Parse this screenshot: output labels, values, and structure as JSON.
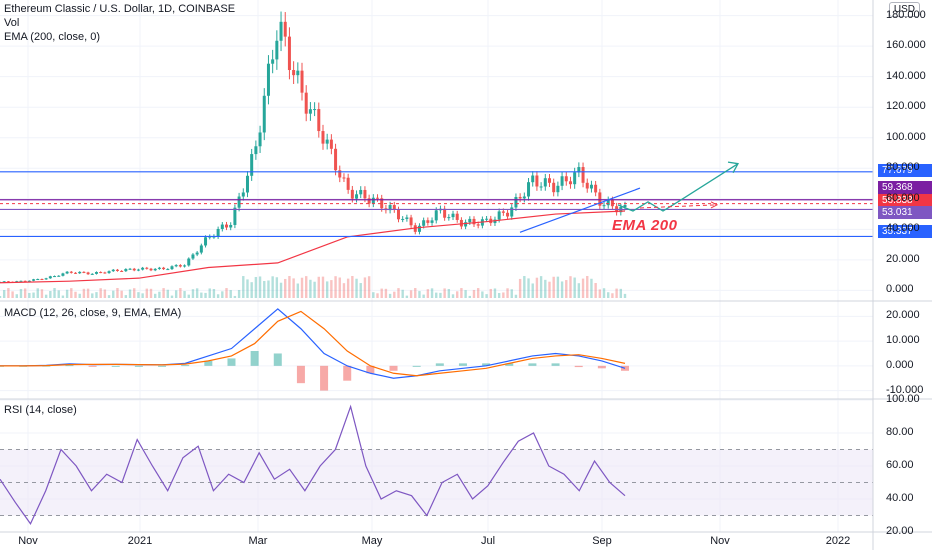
{
  "header": {
    "symbol_line": "Ethereum Classic / U.S. Dollar, 1D, COINBASE",
    "vol_label": "Vol",
    "ema_label": "EMA (200, close, 0)",
    "macd_label": "MACD (12, 26, close, 9, EMA, EMA)",
    "rsi_label": "RSI (14, close)",
    "currency": "USD",
    "annotation": "EMA 200"
  },
  "price_badges": [
    {
      "text": "77.679",
      "color": "#2962ff"
    },
    {
      "text": "59.368",
      "color": "#7b1fa2"
    },
    {
      "text": "56.838",
      "color": "#f23645"
    },
    {
      "text": "53.031",
      "color": "#7e57c2"
    },
    {
      "text": "35.337",
      "color": "#2962ff"
    }
  ],
  "colors": {
    "up": "#26a69a",
    "down": "#ef5350",
    "ema": "#f23645",
    "macd": "#2962ff",
    "signal": "#ff6d00",
    "rsi": "#7e57c2",
    "band": "#ede7f6"
  },
  "chart_data": [
    {
      "type": "candlestick",
      "title": "Ethereum Classic / U.S. Dollar, 1D, COINBASE",
      "x_ticks": [
        "Nov",
        "2021",
        "Mar",
        "May",
        "Jul",
        "Sep",
        "Nov",
        "2022"
      ],
      "y_ticks": [
        "0.000",
        "20.000",
        "40.000",
        "60.000",
        "80.000",
        "100.000",
        "120.000",
        "140.000",
        "160.000",
        "180.000"
      ],
      "ylim": [
        -5,
        185
      ],
      "price_path": [
        {
          "x": "Nov",
          "y": 5.5
        },
        {
          "x": "Dec",
          "y": 6
        },
        {
          "x": "2021",
          "y": 8
        },
        {
          "x": "Jan mid",
          "y": 12
        },
        {
          "x": "Feb",
          "y": 11
        },
        {
          "x": "Feb end",
          "y": 13
        },
        {
          "x": "Mar",
          "y": 14
        },
        {
          "x": "Mar mid",
          "y": 14
        },
        {
          "x": "Apr",
          "y": 17
        },
        {
          "x": "Apr mid",
          "y": 35
        },
        {
          "x": "Apr end",
          "y": 45
        },
        {
          "x": "May",
          "y": 90
        },
        {
          "x": "May 6",
          "y": 175
        },
        {
          "x": "May 8",
          "y": 130
        },
        {
          "x": "May mid",
          "y": 100
        },
        {
          "x": "May end",
          "y": 65
        },
        {
          "x": "Jun",
          "y": 60
        },
        {
          "x": "Jun mid",
          "y": 52
        },
        {
          "x": "Jun end",
          "y": 40
        },
        {
          "x": "Jul",
          "y": 52
        },
        {
          "x": "Jul mid",
          "y": 44
        },
        {
          "x": "Jul end",
          "y": 45
        },
        {
          "x": "Aug",
          "y": 52
        },
        {
          "x": "Aug mid",
          "y": 72
        },
        {
          "x": "Aug end",
          "y": 68
        },
        {
          "x": "Sep",
          "y": 77
        },
        {
          "x": "Sep 7",
          "y": 57
        },
        {
          "x": "Sep mid",
          "y": 53
        }
      ],
      "ema_200_path": [
        {
          "x": "Nov",
          "y": 5
        },
        {
          "x": "2021",
          "y": 6
        },
        {
          "x": "Mar",
          "y": 8
        },
        {
          "x": "Apr mid",
          "y": 15
        },
        {
          "x": "May",
          "y": 18
        },
        {
          "x": "Jun",
          "y": 35
        },
        {
          "x": "Jul",
          "y": 41
        },
        {
          "x": "Aug",
          "y": 45
        },
        {
          "x": "Sep",
          "y": 50
        },
        {
          "x": "Sep mid",
          "y": 52
        }
      ],
      "horizontal_levels": [
        77.679,
        59.368,
        56.838,
        53.031,
        35.337
      ]
    },
    {
      "type": "line",
      "title": "MACD (12, 26, close, 9, EMA, EMA)",
      "y_ticks": [
        "20.000",
        "10.000",
        "0.000",
        "-10.000"
      ],
      "ylim": [
        -13,
        25
      ],
      "series": [
        {
          "name": "MACD",
          "values": [
            0,
            0,
            0.2,
            0.8,
            0.5,
            0.6,
            0.5,
            0.4,
            1,
            4,
            7,
            15,
            23,
            15,
            5,
            0,
            -3,
            -5,
            -4,
            -2,
            -1,
            0,
            2,
            4,
            5,
            4,
            2,
            -1
          ]
        },
        {
          "name": "Signal",
          "values": [
            0,
            0,
            0.1,
            0.5,
            0.6,
            0.6,
            0.5,
            0.4,
            0.7,
            2,
            4,
            9,
            18,
            22,
            15,
            6,
            0,
            -3,
            -4,
            -3,
            -2,
            -1,
            1,
            3,
            4,
            4.5,
            3,
            1
          ]
        }
      ]
    },
    {
      "type": "line",
      "title": "RSI (14, close)",
      "y_ticks": [
        "100.00",
        "80.00",
        "60.00",
        "40.00",
        "20.00"
      ],
      "ylim": [
        20,
        100
      ],
      "band": [
        30,
        70
      ],
      "series": [
        {
          "name": "RSI",
          "values": [
            52,
            38,
            25,
            45,
            70,
            60,
            45,
            55,
            50,
            76,
            60,
            45,
            65,
            72,
            45,
            55,
            50,
            68,
            52,
            58,
            45,
            60,
            70,
            96,
            60,
            40,
            45,
            42,
            30,
            50,
            55,
            40,
            48,
            62,
            75,
            80,
            60,
            55,
            45,
            63,
            50,
            42
          ]
        }
      ]
    }
  ]
}
